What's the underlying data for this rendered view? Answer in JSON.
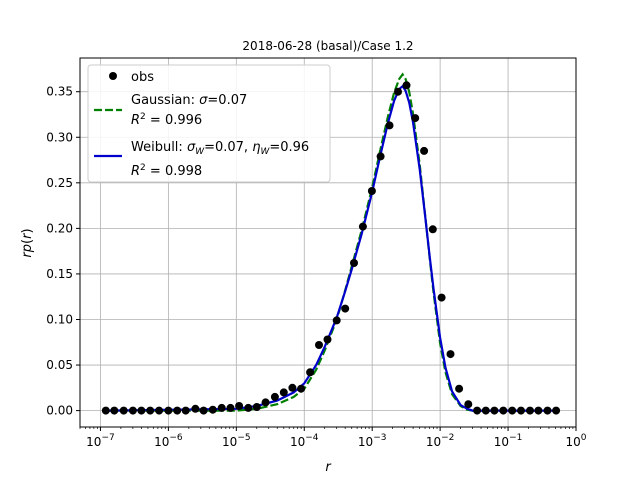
{
  "chart_data": {
    "type": "scatter",
    "title": "2018-06-28 (basal)/Case 1.2",
    "xlabel": "r",
    "ylabel": "rp(r)",
    "xscale": "log",
    "xlim": [
      5e-08,
      1.0
    ],
    "ylim": [
      -0.018,
      0.387
    ],
    "grid": true,
    "legend_position": "upper left",
    "x_ticks": [
      {
        "value": 1e-07,
        "base": "10",
        "exp": "−7"
      },
      {
        "value": 1e-06,
        "base": "10",
        "exp": "−6"
      },
      {
        "value": 1e-05,
        "base": "10",
        "exp": "−5"
      },
      {
        "value": 0.0001,
        "base": "10",
        "exp": "−4"
      },
      {
        "value": 0.001,
        "base": "10",
        "exp": "−3"
      },
      {
        "value": 0.01,
        "base": "10",
        "exp": "−2"
      },
      {
        "value": 0.1,
        "base": "10",
        "exp": "−1"
      },
      {
        "value": 1,
        "base": "10",
        "exp": "0"
      }
    ],
    "y_ticks": [
      0.0,
      0.05,
      0.1,
      0.15,
      0.2,
      0.25,
      0.3,
      0.35
    ],
    "y_tick_labels": [
      "0.00",
      "0.05",
      "0.10",
      "0.15",
      "0.20",
      "0.25",
      "0.30",
      "0.35"
    ],
    "series": [
      {
        "name": "obs",
        "kind": "markers",
        "color": "#000000",
        "x": [
          1.2e-07,
          1.6e-07,
          2.2e-07,
          3e-07,
          4e-07,
          5.4e-07,
          7.3e-07,
          1e-06,
          1.35e-06,
          1.8e-06,
          2.5e-06,
          3.3e-06,
          4.5e-06,
          6.1e-06,
          8.2e-06,
          1.1e-05,
          1.5e-05,
          2e-05,
          2.7e-05,
          3.7e-05,
          5e-05,
          6.7e-05,
          9e-05,
          0.000122,
          0.000165,
          0.00022,
          0.0003,
          0.0004,
          0.00054,
          0.00073,
          0.00099,
          0.00133,
          0.0018,
          0.0024,
          0.0032,
          0.0043,
          0.0058,
          0.0078,
          0.0105,
          0.0142,
          0.019,
          0.026,
          0.035,
          0.047,
          0.063,
          0.085,
          0.115,
          0.155,
          0.21,
          0.28,
          0.38,
          0.51
        ],
        "y": [
          0.0,
          0.0,
          0.0,
          0.0,
          0.0,
          0.0,
          0.0,
          0.0,
          0.0,
          0.0,
          0.002,
          0.0,
          0.001,
          0.003,
          0.003,
          0.005,
          0.003,
          0.004,
          0.009,
          0.015,
          0.02,
          0.025,
          0.024,
          0.042,
          0.072,
          0.078,
          0.099,
          0.112,
          0.162,
          0.202,
          0.241,
          0.279,
          0.313,
          0.35,
          0.357,
          0.321,
          0.285,
          0.199,
          0.124,
          0.062,
          0.024,
          0.007,
          0.0,
          0.0,
          0.0,
          0.0,
          0.0,
          0.0,
          0.0,
          0.0,
          0.0,
          0.0
        ]
      },
      {
        "name": "Gaussian: σ=0.07",
        "r2": "R² = 0.996",
        "kind": "line",
        "style": "dashed",
        "color": "#008000",
        "x": [
          1.2e-07,
          1e-05,
          2e-05,
          4e-05,
          7e-05,
          0.0001,
          0.00015,
          0.0002,
          0.0003,
          0.0004,
          0.0005,
          0.0007,
          0.001,
          0.0013,
          0.0017,
          0.0021,
          0.0025,
          0.0028,
          0.0031,
          0.0035,
          0.004,
          0.005,
          0.006,
          0.007,
          0.008,
          0.01,
          0.012,
          0.015,
          0.02,
          0.025,
          0.03,
          0.04,
          0.51
        ],
        "y": [
          0.0,
          0.0,
          0.002,
          0.007,
          0.015,
          0.024,
          0.045,
          0.066,
          0.1,
          0.132,
          0.158,
          0.198,
          0.245,
          0.284,
          0.322,
          0.349,
          0.364,
          0.369,
          0.364,
          0.35,
          0.325,
          0.27,
          0.215,
          0.168,
          0.13,
          0.074,
          0.042,
          0.018,
          0.005,
          0.001,
          0.0,
          0.0,
          0.0
        ]
      },
      {
        "name": "Weibull: σ_W=0.07, η_W=0.96",
        "r2": "R² = 0.998",
        "kind": "line",
        "style": "solid",
        "color": "#0000cc",
        "x": [
          1.2e-07,
          1e-05,
          2e-05,
          4e-05,
          7e-05,
          0.0001,
          0.00015,
          0.0002,
          0.0003,
          0.0004,
          0.0005,
          0.0007,
          0.001,
          0.0013,
          0.0017,
          0.0021,
          0.0025,
          0.0028,
          0.0031,
          0.0035,
          0.004,
          0.005,
          0.006,
          0.007,
          0.008,
          0.01,
          0.012,
          0.015,
          0.02,
          0.025,
          0.03,
          0.04,
          0.51
        ],
        "y": [
          0.0,
          0.002,
          0.005,
          0.011,
          0.02,
          0.03,
          0.05,
          0.07,
          0.102,
          0.131,
          0.155,
          0.194,
          0.24,
          0.278,
          0.315,
          0.34,
          0.353,
          0.356,
          0.351,
          0.338,
          0.316,
          0.265,
          0.214,
          0.17,
          0.134,
          0.08,
          0.047,
          0.021,
          0.006,
          0.002,
          0.0,
          0.0,
          0.0
        ]
      }
    ],
    "legend": {
      "obs": "obs",
      "gauss_line1_prefix": "Gaussian: ",
      "gauss_line1_sym": "σ",
      "gauss_line1_val": "=0.07",
      "gauss_r2_sym": "R",
      "gauss_r2_val": " = 0.996",
      "weib_prefix": "Weibull: ",
      "weib_sigma_val": "=0.07, ",
      "weib_eta_val": "=0.96",
      "weib_r2_sym": "R",
      "weib_r2_val": " = 0.998"
    }
  }
}
